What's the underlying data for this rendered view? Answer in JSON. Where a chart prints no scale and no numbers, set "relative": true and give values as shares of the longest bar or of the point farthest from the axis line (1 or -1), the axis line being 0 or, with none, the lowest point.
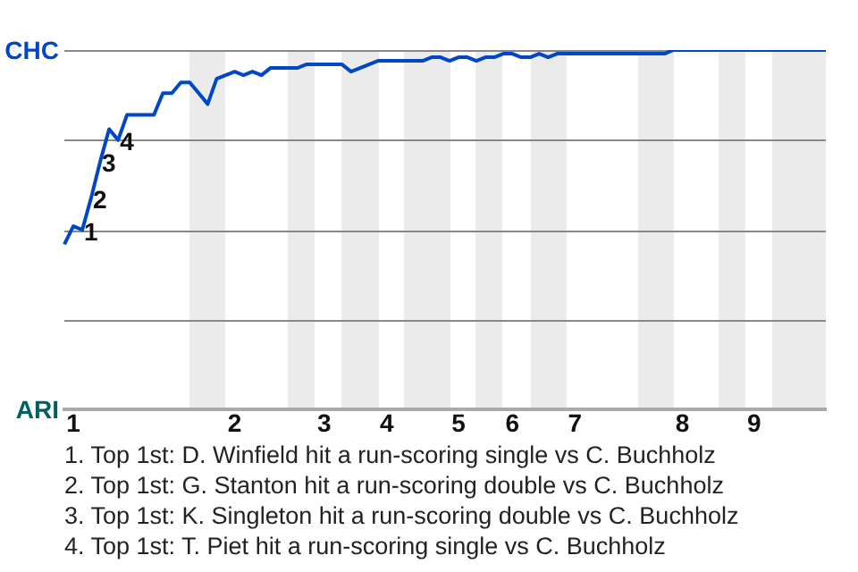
{
  "chart_data": {
    "type": "line",
    "relative": true,
    "categories": [
      null,
      "1",
      null,
      null,
      null,
      null,
      null,
      null,
      null,
      null,
      null,
      null,
      null,
      null,
      null,
      null,
      null,
      null,
      null,
      "2",
      null,
      null,
      null,
      null,
      null,
      null,
      null,
      null,
      null,
      "3",
      null,
      null,
      null,
      null,
      null,
      null,
      "4",
      null,
      null,
      null,
      null,
      null,
      null,
      null,
      "5",
      null,
      null,
      null,
      null,
      null,
      "6",
      null,
      null,
      null,
      null,
      null,
      null,
      "7",
      null,
      null,
      null,
      null,
      null,
      null,
      null,
      null,
      null,
      null,
      null,
      "8",
      null,
      null,
      null,
      null,
      null,
      null,
      null,
      "9",
      null,
      null,
      null,
      null,
      null,
      null,
      null,
      null
    ],
    "marker": "none",
    "line_style": "solid",
    "ref_lines": [
      {
        "axis": "y",
        "value": 0.25,
        "color": "#888888"
      },
      {
        "axis": "y",
        "value": 0.5,
        "color": "#888888"
      },
      {
        "axis": "y",
        "value": 0.75,
        "color": "#888888"
      },
      {
        "axis": "y",
        "value": 1,
        "color": "#888888"
      }
    ],
    "series": [
      {
        "values": [
          0.46,
          0.51,
          0.5,
          0.59,
          0.69,
          0.78,
          0.75,
          0.82,
          0.82,
          0.82,
          0.82,
          0.88,
          0.88,
          0.91,
          0.91,
          0.88,
          0.85,
          0.92,
          0.93,
          0.94,
          0.93,
          0.94,
          0.93,
          0.95,
          0.95,
          0.95,
          0.95,
          0.96,
          0.96,
          0.96,
          0.96,
          0.96,
          0.94,
          0.95,
          0.96,
          0.97,
          0.97,
          0.97,
          0.97,
          0.97,
          0.97,
          0.98,
          0.98,
          0.97,
          0.98,
          0.98,
          0.97,
          0.98,
          0.98,
          0.99,
          0.99,
          0.98,
          0.98,
          0.99,
          0.98,
          0.99,
          0.99,
          0.99,
          0.99,
          0.99,
          0.99,
          0.99,
          0.99,
          0.99,
          0.99,
          0.99,
          0.99,
          0.99,
          1,
          1,
          1,
          1,
          1,
          1,
          1,
          1,
          1,
          1,
          1,
          1,
          1,
          1,
          1,
          1,
          1,
          1
        ],
        "color": "#0047c8"
      }
    ],
    "annotations": [
      "CHC",
      "ARI",
      {
        "text": "1",
        "y": 0.5
      },
      {
        "text": "2",
        "y": 0.59
      },
      {
        "text": "3",
        "y": 0.69
      },
      {
        "text": "4",
        "y": 0.75
      },
      "1. Top 1st: D. Winfield hit a run-scoring single vs C. Buchholz",
      "2. Top 1st: G. Stanton hit a run-scoring double vs C. Buchholz",
      "3. Top 1st: K. Singleton hit a run-scoring double vs C. Buchholz",
      "4. Top 1st: T. Piet hit a run-scoring single vs C. Buchholz"
    ]
  }
}
